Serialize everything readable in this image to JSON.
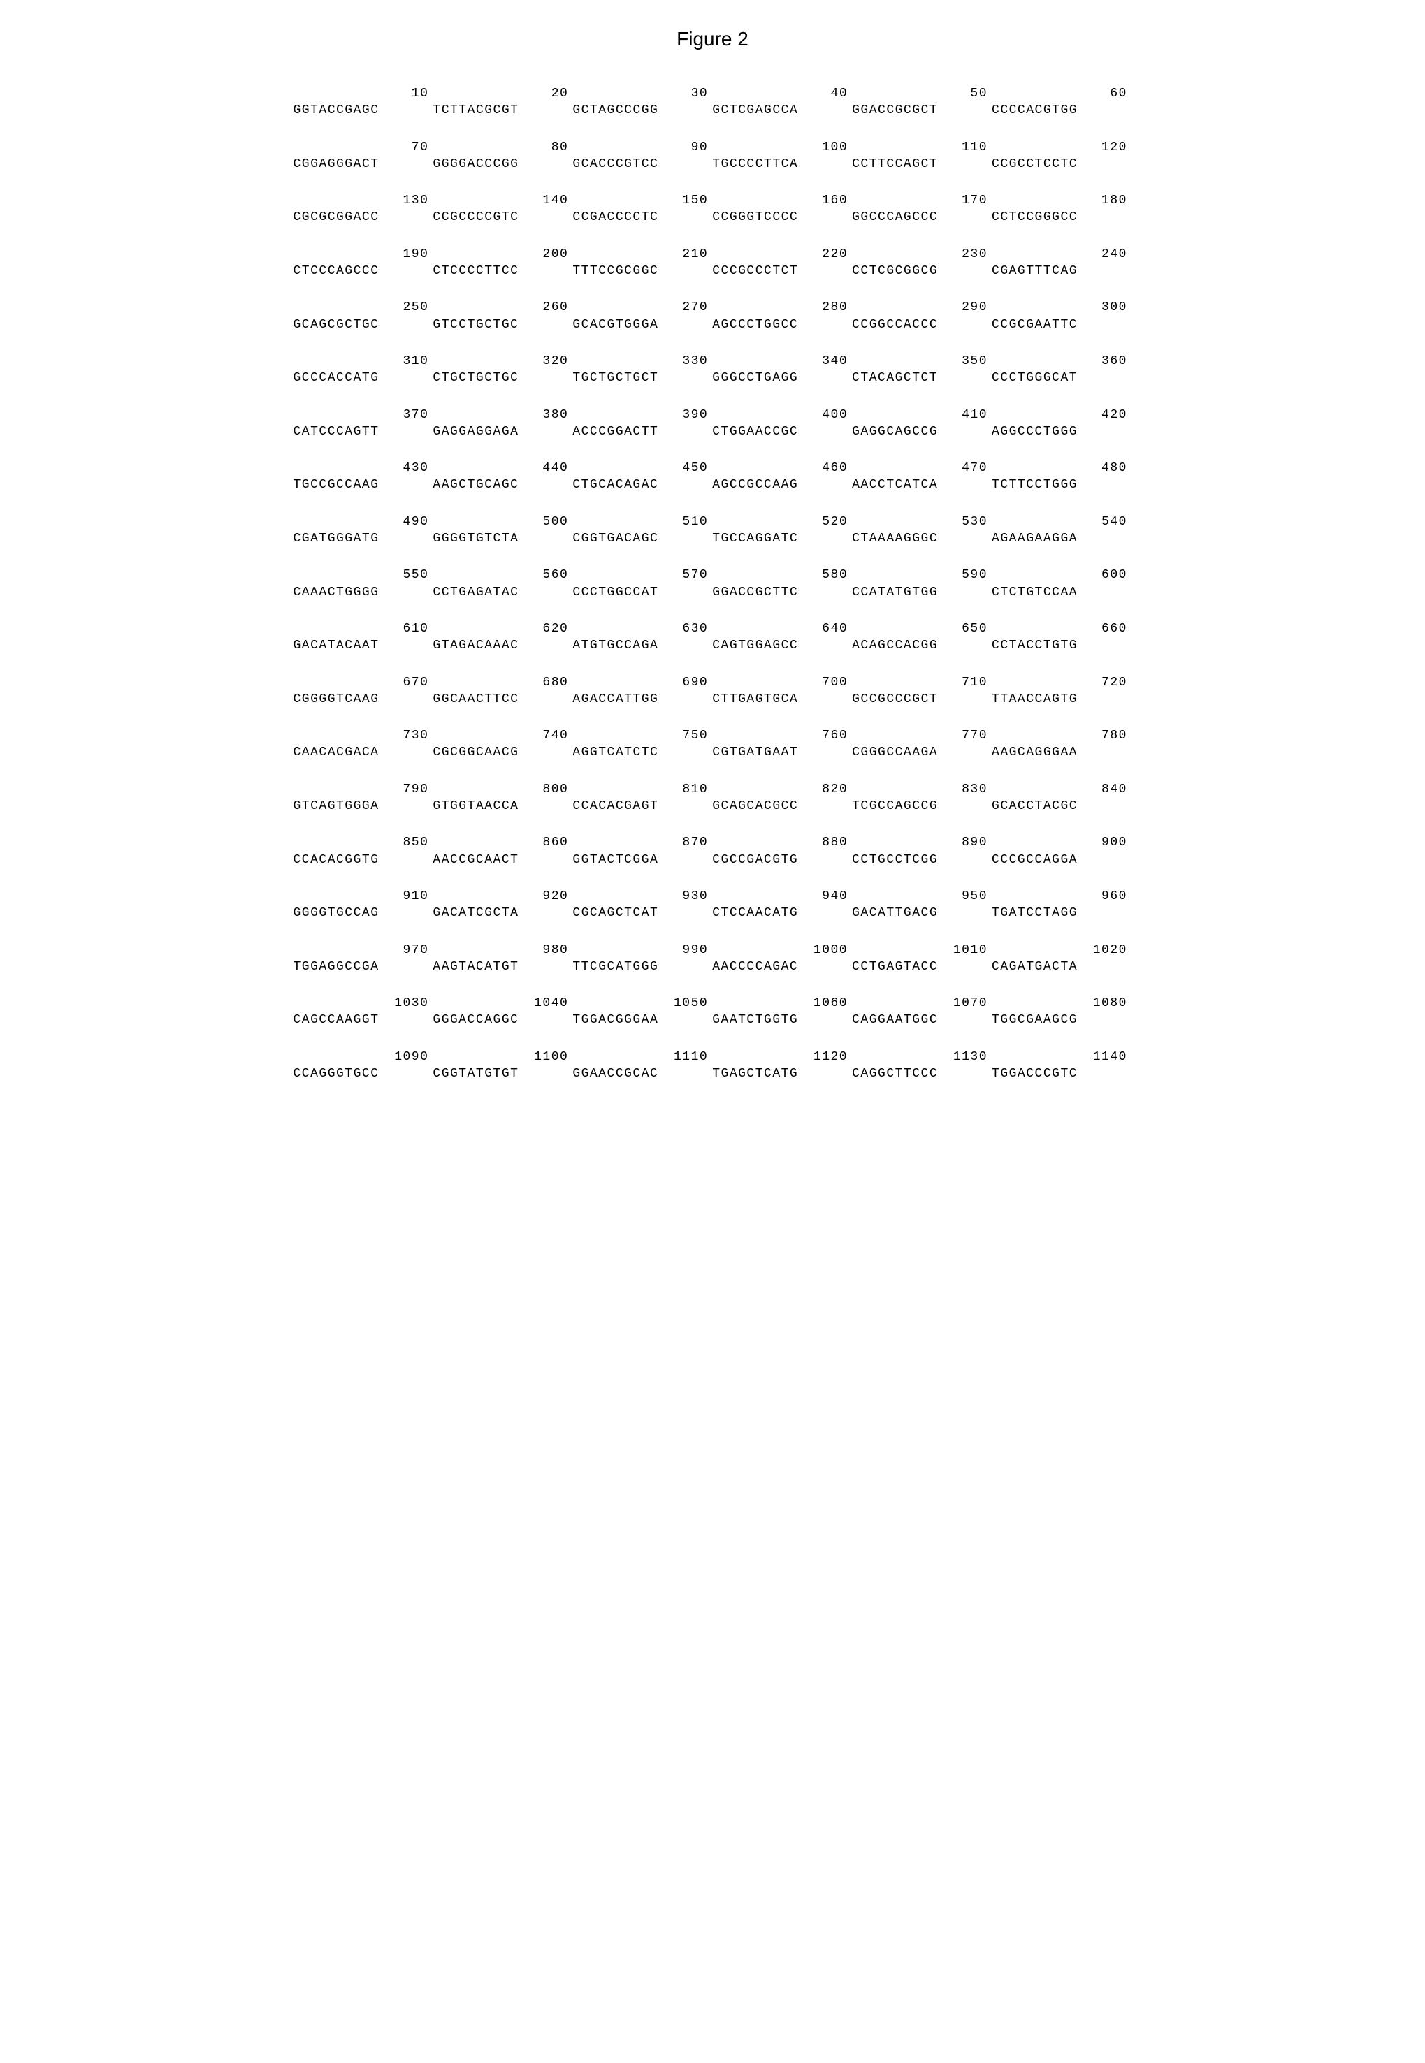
{
  "title": "Figure 2",
  "font": {
    "mono_family": "Courier New",
    "title_family": "Arial",
    "title_size_pt": 20,
    "body_size_pt": 13
  },
  "colors": {
    "background": "#ffffff",
    "text": "#000000"
  },
  "sequence": {
    "block_width": 60,
    "group_width": 10,
    "blocks": [
      {
        "start": 1,
        "positions": [
          "10",
          "20",
          "30",
          "40",
          "50",
          "60"
        ],
        "groups": [
          "GGTACCGAGC",
          "TCTTACGCGT",
          "GCTAGCCCGG",
          "GCTCGAGCCA",
          "GGACCGCGCT",
          "CCCCACGTGG"
        ]
      },
      {
        "start": 61,
        "positions": [
          "70",
          "80",
          "90",
          "100",
          "110",
          "120"
        ],
        "groups": [
          "CGGAGGGACT",
          "GGGGACCCGG",
          "GCACCCGTCC",
          "TGCCCCTTCA",
          "CCTTCCAGCT",
          "CCGCCTCCTC"
        ]
      },
      {
        "start": 121,
        "positions": [
          "130",
          "140",
          "150",
          "160",
          "170",
          "180"
        ],
        "groups": [
          "CGCGCGGACC",
          "CCGCCCCGTC",
          "CCGACCCCTC",
          "CCGGGTCCCC",
          "GGCCCAGCCC",
          "CCTCCGGGCC"
        ]
      },
      {
        "start": 181,
        "positions": [
          "190",
          "200",
          "210",
          "220",
          "230",
          "240"
        ],
        "groups": [
          "CTCCCAGCCC",
          "CTCCCCTTCC",
          "TTTCCGCGGC",
          "CCCGCCCTCT",
          "CCTCGCGGCG",
          "CGAGTTTCAG"
        ]
      },
      {
        "start": 241,
        "positions": [
          "250",
          "260",
          "270",
          "280",
          "290",
          "300"
        ],
        "groups": [
          "GCAGCGCTGC",
          "GTCCTGCTGC",
          "GCACGTGGGA",
          "AGCCCTGGCC",
          "CCGGCCACCC",
          "CCGCGAATTC"
        ]
      },
      {
        "start": 301,
        "positions": [
          "310",
          "320",
          "330",
          "340",
          "350",
          "360"
        ],
        "groups": [
          "GCCCACCATG",
          "CTGCTGCTGC",
          "TGCTGCTGCT",
          "GGGCCTGAGG",
          "CTACAGCTCT",
          "CCCTGGGCAT"
        ]
      },
      {
        "start": 361,
        "positions": [
          "370",
          "380",
          "390",
          "400",
          "410",
          "420"
        ],
        "groups": [
          "CATCCCAGTT",
          "GAGGAGGAGA",
          "ACCCGGACTT",
          "CTGGAACCGC",
          "GAGGCAGCCG",
          "AGGCCCTGGG"
        ]
      },
      {
        "start": 421,
        "positions": [
          "430",
          "440",
          "450",
          "460",
          "470",
          "480"
        ],
        "groups": [
          "TGCCGCCAAG",
          "AAGCTGCAGC",
          "CTGCACAGAC",
          "AGCCGCCAAG",
          "AACCTCATCA",
          "TCTTCCTGGG"
        ]
      },
      {
        "start": 481,
        "positions": [
          "490",
          "500",
          "510",
          "520",
          "530",
          "540"
        ],
        "groups": [
          "CGATGGGATG",
          "GGGGTGTCTA",
          "CGGTGACAGC",
          "TGCCAGGATC",
          "CTAAAAGGGC",
          "AGAAGAAGGA"
        ]
      },
      {
        "start": 541,
        "positions": [
          "550",
          "560",
          "570",
          "580",
          "590",
          "600"
        ],
        "groups": [
          "CAAACTGGGG",
          "CCTGAGATAC",
          "CCCTGGCCAT",
          "GGACCGCTTC",
          "CCATATGTGG",
          "CTCTGTCCAA"
        ]
      },
      {
        "start": 601,
        "positions": [
          "610",
          "620",
          "630",
          "640",
          "650",
          "660"
        ],
        "groups": [
          "GACATACAAT",
          "GTAGACAAAC",
          "ATGTGCCAGA",
          "CAGTGGAGCC",
          "ACAGCCACGG",
          "CCTACCTGTG"
        ]
      },
      {
        "start": 661,
        "positions": [
          "670",
          "680",
          "690",
          "700",
          "710",
          "720"
        ],
        "groups": [
          "CGGGGTCAAG",
          "GGCAACTTCC",
          "AGACCATTGG",
          "CTTGAGTGCA",
          "GCCGCCCGCT",
          "TTAACCAGTG"
        ]
      },
      {
        "start": 721,
        "positions": [
          "730",
          "740",
          "750",
          "760",
          "770",
          "780"
        ],
        "groups": [
          "CAACACGACA",
          "CGCGGCAACG",
          "AGGTCATCTC",
          "CGTGATGAAT",
          "CGGGCCAAGA",
          "AAGCAGGGAA"
        ]
      },
      {
        "start": 781,
        "positions": [
          "790",
          "800",
          "810",
          "820",
          "830",
          "840"
        ],
        "groups": [
          "GTCAGTGGGA",
          "GTGGTAACCA",
          "CCACACGAGT",
          "GCAGCACGCC",
          "TCGCCAGCCG",
          "GCACCTACGC"
        ]
      },
      {
        "start": 841,
        "positions": [
          "850",
          "860",
          "870",
          "880",
          "890",
          "900"
        ],
        "groups": [
          "CCACACGGTG",
          "AACCGCAACT",
          "GGTACTCGGA",
          "CGCCGACGTG",
          "CCTGCCTCGG",
          "CCCGCCAGGA"
        ]
      },
      {
        "start": 901,
        "positions": [
          "910",
          "920",
          "930",
          "940",
          "950",
          "960"
        ],
        "groups": [
          "GGGGTGCCAG",
          "GACATCGCTA",
          "CGCAGCTCAT",
          "CTCCAACATG",
          "GACATTGACG",
          "TGATCCTAGG"
        ]
      },
      {
        "start": 961,
        "positions": [
          "970",
          "980",
          "990",
          "1000",
          "1010",
          "1020"
        ],
        "groups": [
          "TGGAGGCCGA",
          "AAGTACATGT",
          "TTCGCATGGG",
          "AACCCCAGAC",
          "CCTGAGTACC",
          "CAGATGACTA"
        ]
      },
      {
        "start": 1021,
        "positions": [
          "1030",
          "1040",
          "1050",
          "1060",
          "1070",
          "1080"
        ],
        "groups": [
          "CAGCCAAGGT",
          "GGGACCAGGC",
          "TGGACGGGAA",
          "GAATCTGGTG",
          "CAGGAATGGC",
          "TGGCGAAGCG"
        ]
      },
      {
        "start": 1081,
        "positions": [
          "1090",
          "1100",
          "1110",
          "1120",
          "1130",
          "1140"
        ],
        "groups": [
          "CCAGGGTGCC",
          "CGGTATGTGT",
          "GGAACCGCAC",
          "TGAGCTCATG",
          "CAGGCTTCCC",
          "TGGACCCGTC"
        ]
      }
    ]
  }
}
